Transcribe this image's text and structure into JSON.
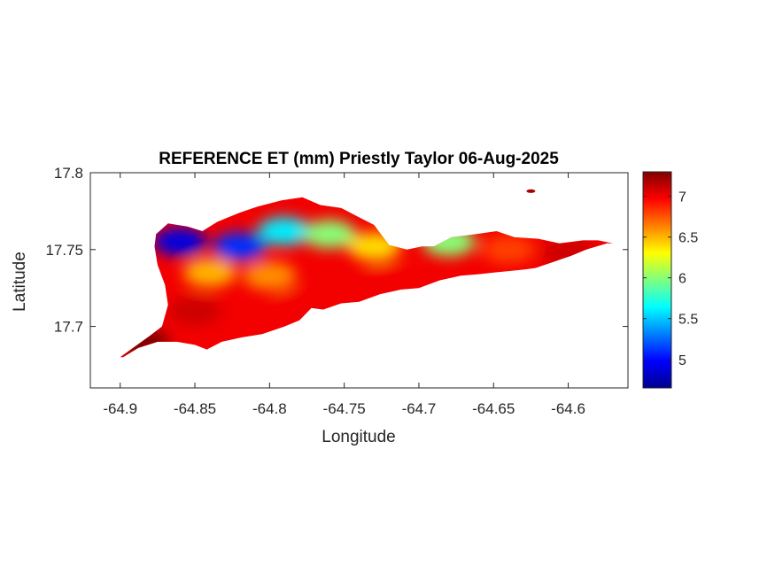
{
  "chart_data": {
    "type": "heatmap",
    "title": "REFERENCE ET (mm) Priestly Taylor 06-Aug-2025",
    "xlabel": "Longitude",
    "ylabel": "Latitude",
    "xlim": [
      -64.92,
      -64.56
    ],
    "ylim": [
      17.66,
      17.8
    ],
    "x_ticks": [
      -64.9,
      -64.85,
      -64.8,
      -64.75,
      -64.7,
      -64.65,
      -64.6
    ],
    "x_tick_labels": [
      "-64.9",
      "-64.85",
      "-64.8",
      "-64.75",
      "-64.7",
      "-64.65",
      "-64.6"
    ],
    "y_ticks": [
      17.7,
      17.75,
      17.8
    ],
    "y_tick_labels": [
      "17.7",
      "17.75",
      "17.8"
    ],
    "colormap": "jet",
    "color_range": [
      4.65,
      7.3
    ],
    "colorbar_ticks": [
      5,
      5.5,
      6,
      6.5,
      7
    ],
    "colorbar_tick_labels": [
      "5",
      "5.5",
      "6",
      "6.5",
      "7"
    ],
    "grid": false,
    "island_outline": [
      [
        -64.9,
        17.68
      ],
      [
        -64.88,
        17.694
      ],
      [
        -64.872,
        17.7
      ],
      [
        -64.868,
        17.714
      ],
      [
        -64.87,
        17.727
      ],
      [
        -64.875,
        17.74
      ],
      [
        -64.877,
        17.752
      ],
      [
        -64.876,
        17.76
      ],
      [
        -64.868,
        17.767
      ],
      [
        -64.855,
        17.765
      ],
      [
        -64.845,
        17.762
      ],
      [
        -64.835,
        17.768
      ],
      [
        -64.82,
        17.774
      ],
      [
        -64.808,
        17.778
      ],
      [
        -64.792,
        17.782
      ],
      [
        -64.778,
        17.784
      ],
      [
        -64.766,
        17.779
      ],
      [
        -64.752,
        17.777
      ],
      [
        -64.742,
        17.772
      ],
      [
        -64.73,
        17.766
      ],
      [
        -64.72,
        17.753
      ],
      [
        -64.708,
        17.75
      ],
      [
        -64.698,
        17.752
      ],
      [
        -64.69,
        17.752
      ],
      [
        -64.678,
        17.758
      ],
      [
        -64.662,
        17.76
      ],
      [
        -64.648,
        17.762
      ],
      [
        -64.636,
        17.758
      ],
      [
        -64.62,
        17.757
      ],
      [
        -64.606,
        17.754
      ],
      [
        -64.59,
        17.756
      ],
      [
        -64.58,
        17.756
      ],
      [
        -64.57,
        17.754
      ],
      [
        -64.574,
        17.754
      ],
      [
        -64.588,
        17.75
      ],
      [
        -64.598,
        17.746
      ],
      [
        -64.61,
        17.742
      ],
      [
        -64.622,
        17.738
      ],
      [
        -64.63,
        17.737
      ],
      [
        -64.64,
        17.736
      ],
      [
        -64.65,
        17.735
      ],
      [
        -64.66,
        17.734
      ],
      [
        -64.672,
        17.733
      ],
      [
        -64.686,
        17.73
      ],
      [
        -64.7,
        17.725
      ],
      [
        -64.712,
        17.724
      ],
      [
        -64.726,
        17.721
      ],
      [
        -64.74,
        17.716
      ],
      [
        -64.752,
        17.715
      ],
      [
        -64.764,
        17.711
      ],
      [
        -64.772,
        17.712
      ],
      [
        -64.776,
        17.708
      ],
      [
        -64.78,
        17.704
      ],
      [
        -64.79,
        17.7
      ],
      [
        -64.805,
        17.695
      ],
      [
        -64.818,
        17.693
      ],
      [
        -64.832,
        17.69
      ],
      [
        -64.842,
        17.685
      ],
      [
        -64.85,
        17.688
      ],
      [
        -64.862,
        17.69
      ],
      [
        -64.875,
        17.69
      ],
      [
        -64.888,
        17.686
      ],
      [
        -64.898,
        17.68
      ]
    ],
    "value_samples": [
      {
        "lon": -64.86,
        "lat": 17.755,
        "value": 4.9
      },
      {
        "lon": -64.82,
        "lat": 17.752,
        "value": 5.1
      },
      {
        "lon": -64.79,
        "lat": 17.762,
        "value": 5.6
      },
      {
        "lon": -64.76,
        "lat": 17.76,
        "value": 6.0
      },
      {
        "lon": -64.73,
        "lat": 17.752,
        "value": 6.4
      },
      {
        "lon": -64.68,
        "lat": 17.755,
        "value": 6.0
      },
      {
        "lon": -64.64,
        "lat": 17.75,
        "value": 6.8
      },
      {
        "lon": -64.6,
        "lat": 17.748,
        "value": 7.1
      },
      {
        "lon": -64.84,
        "lat": 17.735,
        "value": 6.5
      },
      {
        "lon": -64.8,
        "lat": 17.733,
        "value": 6.6
      },
      {
        "lon": -64.85,
        "lat": 17.71,
        "value": 7.1
      },
      {
        "lon": -64.78,
        "lat": 17.715,
        "value": 7.0
      },
      {
        "lon": -64.72,
        "lat": 17.73,
        "value": 7.0
      },
      {
        "lon": -64.885,
        "lat": 17.69,
        "value": 7.3
      }
    ],
    "islet": {
      "lon": -64.625,
      "lat": 17.788,
      "value": 7.2
    }
  }
}
